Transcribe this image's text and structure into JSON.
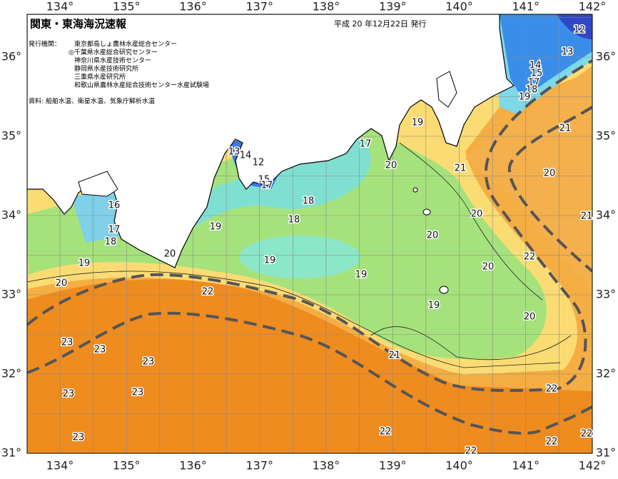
{
  "header": {
    "title": "関東・東海海況速報",
    "issue_date": "平成 20 年12月22日 発行"
  },
  "issuers": {
    "label": "発行機関：",
    "organizations": [
      "東京都島しょ農林水産総合センター",
      "◎千葉県水産総合研究センター",
      "神奈川県水産技術センター",
      "静岡県水産技術研究所",
      "三重県水産研究所",
      "和歌山県農林水産総合技術センター水産試験場"
    ]
  },
  "source": "資料: 船舶水温、衛星水温、気象庁解析水温",
  "longitude_labels": [
    "134°",
    "135°",
    "136°",
    "137°",
    "138°",
    "139°",
    "140°",
    "141°",
    "142°"
  ],
  "latitude_labels": [
    "36°",
    "35°",
    "34°",
    "33°",
    "32°",
    "31°"
  ],
  "contour_labels": [
    12,
    13,
    14,
    15,
    17,
    18,
    19,
    19,
    17,
    20,
    21,
    21,
    20,
    21,
    20,
    20,
    22,
    20,
    20,
    19,
    19,
    19,
    18,
    18,
    19,
    13,
    14,
    12,
    15,
    17,
    16,
    17,
    18,
    20,
    19,
    20,
    22,
    21,
    23,
    23,
    23,
    23,
    23,
    23,
    22,
    22,
    22,
    22,
    22
  ]
}
